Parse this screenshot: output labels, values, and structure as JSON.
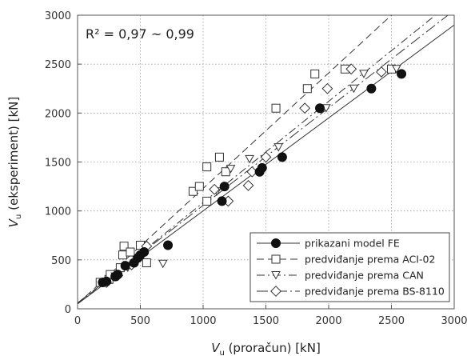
{
  "chart_data": {
    "type": "scatter",
    "xlabel_main": "V",
    "xlabel_sub": "u",
    "xlabel_rest": " (proračun) [kN]",
    "ylabel_main": "V",
    "ylabel_sub": "u",
    "ylabel_rest": " (eksperiment) [kN]",
    "xlim": [
      0,
      3000
    ],
    "ylim": [
      0,
      3000
    ],
    "xticks": [
      "0",
      "500",
      "1000",
      "1500",
      "2000",
      "2500",
      "3000"
    ],
    "yticks": [
      "0",
      "500",
      "1000",
      "1500",
      "2000",
      "2500",
      "3000"
    ],
    "grid": true,
    "annotation": "R² = 0,97 ~ 0,99",
    "legend_position": "bottom-right",
    "series": [
      {
        "name": "prikazani model FE",
        "marker": "filled-circle",
        "line": "solid",
        "fit": [
          [
            0,
            50
          ],
          [
            3000,
            2900
          ]
        ],
        "points": [
          [
            200,
            270
          ],
          [
            230,
            280
          ],
          [
            300,
            330
          ],
          [
            320,
            350
          ],
          [
            380,
            440
          ],
          [
            450,
            470
          ],
          [
            480,
            520
          ],
          [
            500,
            550
          ],
          [
            530,
            580
          ],
          [
            720,
            650
          ],
          [
            1150,
            1100
          ],
          [
            1170,
            1250
          ],
          [
            1450,
            1400
          ],
          [
            1470,
            1440
          ],
          [
            1630,
            1550
          ],
          [
            1930,
            2050
          ],
          [
            2340,
            2250
          ],
          [
            2580,
            2400
          ]
        ]
      },
      {
        "name": "predviđanje prema ACI-02",
        "marker": "open-square",
        "line": "dashed",
        "fit": [
          [
            0,
            50
          ],
          [
            2500,
            3000
          ]
        ],
        "points": [
          [
            180,
            270
          ],
          [
            250,
            300
          ],
          [
            260,
            350
          ],
          [
            340,
            420
          ],
          [
            360,
            550
          ],
          [
            370,
            640
          ],
          [
            420,
            580
          ],
          [
            500,
            650
          ],
          [
            550,
            470
          ],
          [
            920,
            1200
          ],
          [
            970,
            1250
          ],
          [
            1030,
            1100
          ],
          [
            1030,
            1450
          ],
          [
            1130,
            1550
          ],
          [
            1180,
            1400
          ],
          [
            1580,
            2050
          ],
          [
            1830,
            2250
          ],
          [
            1890,
            2400
          ],
          [
            2130,
            2450
          ],
          [
            2500,
            2450
          ]
        ]
      },
      {
        "name": "predviđanje prema CAN",
        "marker": "open-triangle-down",
        "line": "dash-dot",
        "fit": [
          [
            0,
            50
          ],
          [
            2850,
            3000
          ]
        ],
        "points": [
          [
            220,
            270
          ],
          [
            300,
            330
          ],
          [
            400,
            420
          ],
          [
            480,
            500
          ],
          [
            680,
            460
          ],
          [
            1110,
            1200
          ],
          [
            1220,
            1430
          ],
          [
            1370,
            1530
          ],
          [
            1600,
            1650
          ],
          [
            1980,
            2050
          ],
          [
            2200,
            2250
          ],
          [
            2280,
            2400
          ],
          [
            2540,
            2450
          ]
        ]
      },
      {
        "name": "predviđanje prema BS-8110",
        "marker": "open-diamond",
        "line": "long-dash-dot",
        "fit": [
          [
            0,
            60
          ],
          [
            2950,
            3000
          ]
        ],
        "points": [
          [
            230,
            270
          ],
          [
            320,
            340
          ],
          [
            430,
            450
          ],
          [
            480,
            530
          ],
          [
            550,
            640
          ],
          [
            1090,
            1220
          ],
          [
            1200,
            1100
          ],
          [
            1360,
            1260
          ],
          [
            1390,
            1400
          ],
          [
            1500,
            1550
          ],
          [
            1810,
            2050
          ],
          [
            1990,
            2250
          ],
          [
            2180,
            2450
          ],
          [
            2420,
            2420
          ]
        ]
      }
    ]
  }
}
